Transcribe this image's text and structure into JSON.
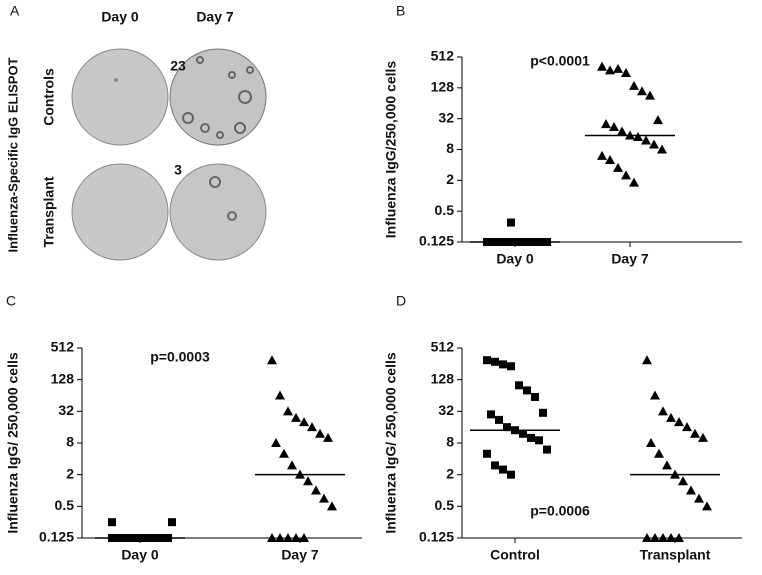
{
  "image_panel": {
    "letter": "A",
    "title": "Influenza-Specific IgG ELISPOT",
    "columns": [
      "Day 0",
      "Day 7"
    ],
    "rows": [
      "Controls",
      "Transplant"
    ],
    "counts": [
      "23",
      "3"
    ]
  },
  "chart_data": [
    {
      "type": "dotplot",
      "letter": "B",
      "y_label": "Influenza IgG/250,000 cells",
      "annotation": "p<0.0001",
      "categories": [
        "Day 0",
        "Day 7"
      ],
      "markers": [
        "square",
        "triangle"
      ],
      "color": "#000000",
      "values": [
        [
          0.125,
          0.125,
          0.125,
          0.125,
          0.125,
          0.125,
          0.125,
          0.125,
          0.125,
          0.125,
          0.125,
          0.125,
          0.125,
          0.125,
          0.125,
          0.125,
          0.125,
          0.125,
          0.125,
          0.3
        ],
        [
          330,
          280,
          300,
          250,
          140,
          110,
          90,
          30,
          25,
          22,
          18,
          15,
          14,
          12,
          10,
          8,
          6,
          5,
          3.5,
          2.5,
          1.8
        ]
      ],
      "medians": [
        0.125,
        15
      ],
      "log_base": 2,
      "ylim": [
        0.125,
        512
      ],
      "yticks": [
        0.125,
        0.5,
        2,
        8,
        32,
        128,
        512
      ]
    },
    {
      "type": "dotplot",
      "letter": "C",
      "y_label": "Influenza IgG/ 250,000 cells",
      "annotation": "p=0.0003",
      "categories": [
        "Day 0",
        "Day 7"
      ],
      "markers": [
        "square",
        "triangle"
      ],
      "color": "#000000",
      "values": [
        [
          0.125,
          0.125,
          0.125,
          0.125,
          0.125,
          0.125,
          0.125,
          0.125,
          0.125,
          0.125,
          0.125,
          0.125,
          0.125,
          0.125,
          0.125,
          0.25,
          0.25
        ],
        [
          300,
          64,
          32,
          24,
          20,
          16,
          12,
          10,
          8,
          5,
          3,
          2,
          1.5,
          1,
          0.7,
          0.5,
          0.125,
          0.125,
          0.125,
          0.125,
          0.125
        ]
      ],
      "medians": [
        0.125,
        2
      ],
      "log_base": 2,
      "ylim": [
        0.125,
        512
      ],
      "yticks": [
        0.125,
        0.5,
        2,
        8,
        32,
        128,
        512
      ]
    },
    {
      "type": "dotplot",
      "letter": "D",
      "y_label": "Influenza IgG/ 250,000 cells",
      "annotation": "p=0.0006",
      "categories": [
        "Control",
        "Transplant"
      ],
      "markers": [
        "square",
        "triangle"
      ],
      "color": "#000000",
      "values": [
        [
          300,
          280,
          250,
          230,
          100,
          80,
          60,
          30,
          28,
          22,
          16,
          14,
          12,
          10,
          9,
          6,
          5,
          3,
          2.5,
          2
        ],
        [
          300,
          64,
          32,
          24,
          20,
          16,
          12,
          10,
          8,
          5,
          3,
          2,
          1.5,
          1,
          0.7,
          0.5,
          0.125,
          0.125,
          0.125,
          0.125,
          0.125
        ]
      ],
      "medians": [
        14,
        2
      ],
      "log_base": 2,
      "ylim": [
        0.125,
        512
      ],
      "yticks": [
        0.125,
        0.5,
        2,
        8,
        32,
        128,
        512
      ]
    }
  ]
}
